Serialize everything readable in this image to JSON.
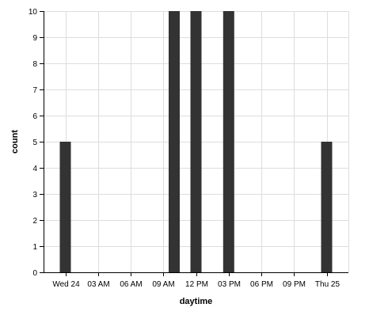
{
  "chart_data": {
    "type": "bar",
    "title": "",
    "xlabel": "daytime",
    "ylabel": "count",
    "ylim": [
      0,
      10
    ],
    "xlim": [
      "2025-09-23T22:00",
      "2025-09-25T02:00"
    ],
    "y_ticks": [
      0,
      1,
      2,
      3,
      4,
      5,
      6,
      7,
      8,
      9,
      10
    ],
    "x_ticks": [
      {
        "value": "2025-09-24T00:00",
        "label": "Wed 24"
      },
      {
        "value": "2025-09-24T03:00",
        "label": "03 AM"
      },
      {
        "value": "2025-09-24T06:00",
        "label": "06 AM"
      },
      {
        "value": "2025-09-24T09:00",
        "label": "09 AM"
      },
      {
        "value": "2025-09-24T12:00",
        "label": "12 PM"
      },
      {
        "value": "2025-09-24T15:00",
        "label": "03 PM"
      },
      {
        "value": "2025-09-24T18:00",
        "label": "06 PM"
      },
      {
        "value": "2025-09-24T21:00",
        "label": "09 PM"
      },
      {
        "value": "2025-09-25T00:00",
        "label": "Thu 25"
      }
    ],
    "bars": [
      {
        "x": "2025-09-24T00:00",
        "value": 5
      },
      {
        "x": "2025-09-24T10:00",
        "value": 10
      },
      {
        "x": "2025-09-24T12:00",
        "value": 10
      },
      {
        "x": "2025-09-24T15:00",
        "value": 10
      },
      {
        "x": "2025-09-25T00:00",
        "value": 5
      }
    ],
    "bar_color": "#333333",
    "grid": true
  }
}
